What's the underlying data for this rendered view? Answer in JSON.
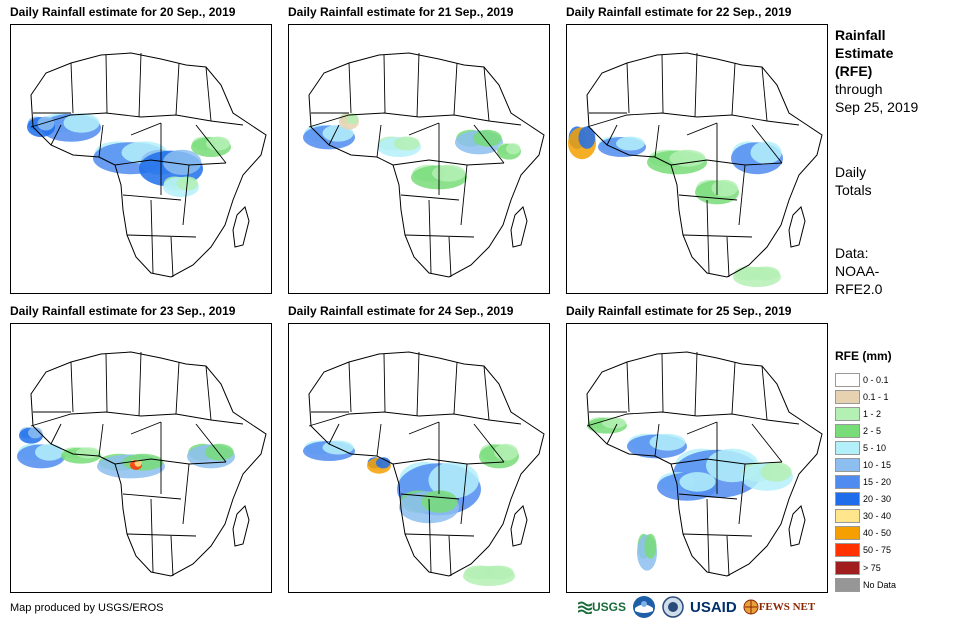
{
  "panels": [
    {
      "title": "Daily Rainfall estimate for 20 Sep., 2019"
    },
    {
      "title": "Daily Rainfall estimate for 21 Sep., 2019"
    },
    {
      "title": "Daily Rainfall estimate for 22 Sep., 2019"
    },
    {
      "title": "Daily Rainfall estimate for 23 Sep., 2019"
    },
    {
      "title": "Daily Rainfall estimate for 24 Sep., 2019"
    },
    {
      "title": "Daily Rainfall estimate for 25 Sep., 2019"
    }
  ],
  "info": {
    "title_line1": "Rainfall",
    "title_line2": "Estimate",
    "title_line3": "(RFE)",
    "through_line1": "through",
    "through_line2": "Sep 25, 2019",
    "totals_line1": "Daily",
    "totals_line2": "Totals",
    "data_line1": "Data:",
    "data_line2": "NOAA-",
    "data_line3": "RFE2.0"
  },
  "legend": {
    "title": "RFE (mm)",
    "items": [
      {
        "label": "0 - 0.1",
        "color": "#ffffff"
      },
      {
        "label": "0.1 - 1",
        "color": "#e6d2b0"
      },
      {
        "label": "1 - 2",
        "color": "#b4f0b4"
      },
      {
        "label": "2 - 5",
        "color": "#78dc78"
      },
      {
        "label": "5 - 10",
        "color": "#b4f0fa"
      },
      {
        "label": "10 - 15",
        "color": "#8cbef0"
      },
      {
        "label": "15 - 20",
        "color": "#508cf0"
      },
      {
        "label": "20 - 30",
        "color": "#1e6eeb"
      },
      {
        "label": "30 - 40",
        "color": "#ffe68c"
      },
      {
        "label": "40 - 50",
        "color": "#f5a000"
      },
      {
        "label": "50 - 75",
        "color": "#ff3200"
      },
      {
        "label": "> 75",
        "color": "#a01e1e"
      },
      {
        "label": "No Data",
        "color": "#969696"
      }
    ]
  },
  "credit": "Map produced by USGS/EROS",
  "logos": {
    "usgs": "USGS",
    "noaa": "NOAA",
    "usaid": "USAID",
    "fewsnet": "FEWS NET"
  }
}
